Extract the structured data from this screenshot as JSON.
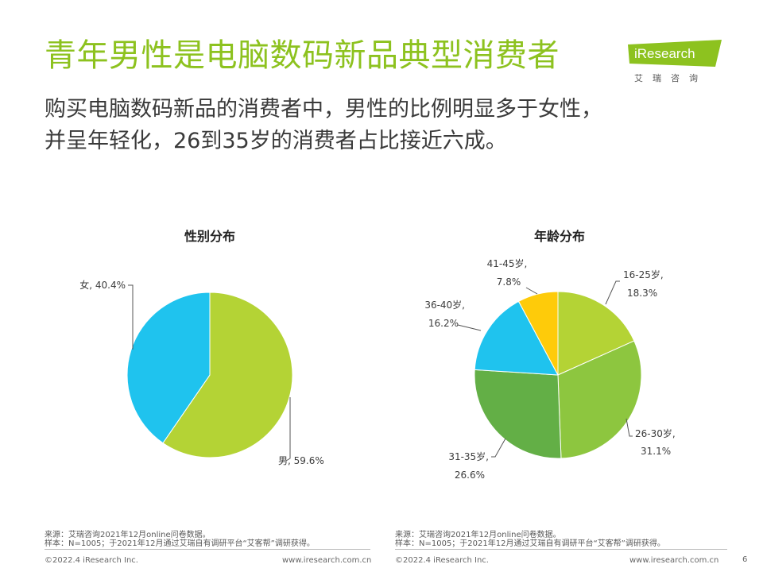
{
  "header": {
    "title": "青年男性是电脑数码新品典型消费者",
    "subtitle_line1": "购买电脑数码新品的消费者中，男性的比例明显多于女性，",
    "subtitle_line2": "并呈年轻化，26到35岁的消费者占比接近六成。"
  },
  "logo": {
    "name": "iResearch",
    "sub": "艾瑞咨询",
    "color": "#8DC21F"
  },
  "colors": {
    "title": "#8DC21F",
    "slice_green_light": "#B4D335",
    "slice_blue": "#1FC3EE",
    "slice_green_mid": "#8DC63F",
    "slice_green_dark": "#63AF46",
    "slice_yellow": "#FECB0A"
  },
  "chart_data": [
    {
      "type": "pie",
      "title": "性别分布",
      "slices": [
        {
          "label": "男",
          "value": 59.6,
          "display": "男, 59.6%",
          "color": "#B4D335"
        },
        {
          "label": "女",
          "value": 40.4,
          "display": "女, 40.4%",
          "color": "#1FC3EE"
        }
      ]
    },
    {
      "type": "pie",
      "title": "年龄分布",
      "slices": [
        {
          "label": "16-25岁",
          "value": 18.3,
          "line1": "16-25岁,",
          "line2": "18.3%",
          "color": "#B4D335"
        },
        {
          "label": "26-30岁",
          "value": 31.1,
          "line1": "26-30岁,",
          "line2": "31.1%",
          "color": "#8DC63F"
        },
        {
          "label": "31-35岁",
          "value": 26.6,
          "line1": "31-35岁,",
          "line2": "26.6%",
          "color": "#63AF46"
        },
        {
          "label": "36-40岁",
          "value": 16.2,
          "line1": "36-40岁,",
          "line2": "16.2%",
          "color": "#1FC3EE"
        },
        {
          "label": "41-45岁",
          "value": 7.8,
          "line1": "41-45岁,",
          "line2": "7.8%",
          "color": "#FECB0A"
        }
      ]
    }
  ],
  "footer": {
    "left_source": "来源：艾瑞咨询2021年12月online问卷数据。",
    "left_sample": "样本：N=1005；于2021年12月通过艾瑞自有调研平台“艾客帮”调研获得。",
    "right_source": "来源：艾瑞咨询2021年12月online问卷数据。",
    "right_sample": "样本：N=1005；于2021年12月通过艾瑞自有调研平台“艾客帮”调研获得。",
    "copyright_left": "©2022.4 iResearch Inc.",
    "url_left": "www.iresearch.com.cn",
    "copyright_right": "©2022.4 iResearch Inc.",
    "url_right": "www.iresearch.com.cn",
    "page_number": "6"
  }
}
